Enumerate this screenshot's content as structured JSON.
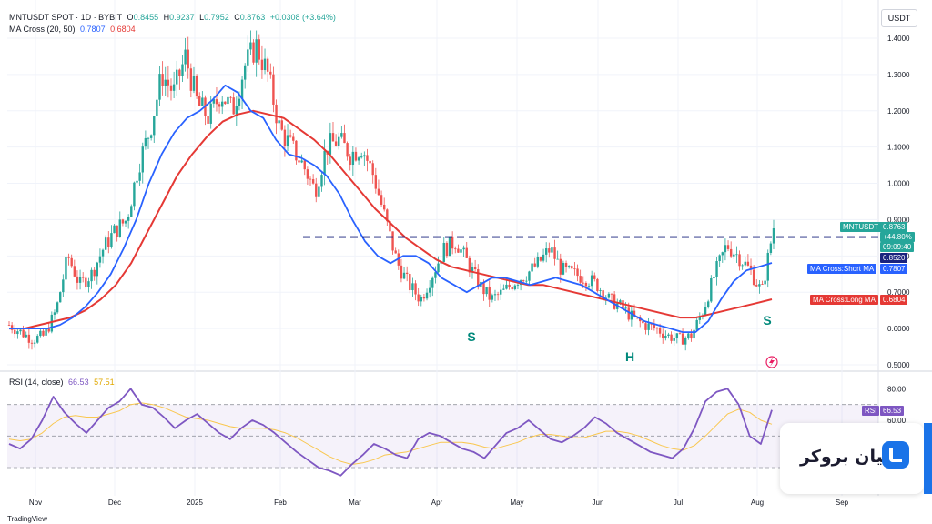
{
  "header": {
    "line1_prefix": "",
    "symbol_line": "MNTUSDT SPOT · 1D · BYBIT",
    "open_label": "O",
    "open": "0.8455",
    "high_label": "H",
    "high": "0.9237",
    "low_label": "L",
    "low": "0.7952",
    "close_label": "C",
    "close": "0.8763",
    "change": "+0.0308 (+3.64%)",
    "ma_label": "MA Cross (20, 50)",
    "ma_short": "0.7807",
    "ma_long": "0.6804",
    "currency_button": "USDT",
    "rsi_label": "RSI (14, close)",
    "rsi_value": "66.53",
    "rsi_ma": "57.51"
  },
  "price_tags": {
    "symbol": "MNTUSDT",
    "price": "0.8763",
    "pct": "+44.80%",
    "countdown": "09:09:40",
    "level": "0.8520",
    "short_ma_label": "MA Cross:Short MA",
    "short_ma": "0.7807",
    "long_ma_label": "MA Cross:Long MA",
    "long_ma": "0.6804",
    "rsi_tag_label": "RSI",
    "rsi_tag_value": "66.53"
  },
  "annotations": {
    "s_left": "S",
    "head": "H",
    "s_right": "S"
  },
  "logo": {
    "text": "لیان بروکر"
  },
  "footer": {
    "tradingview": "TradingView"
  },
  "colors": {
    "up": "#26a69a",
    "down": "#ef5350",
    "short_ma": "#2962ff",
    "long_ma": "#e53935",
    "rsi": "#7e57c2",
    "rsi_ma": "#f9c74f",
    "neckline": "#1a237e"
  },
  "chart_data": {
    "type": "line",
    "title": "MNTUSDT SPOT · 1D · BYBIT",
    "x_ticks": [
      "Nov",
      "Dec",
      "2025",
      "Feb",
      "Mar",
      "Apr",
      "May",
      "Jun",
      "Jul",
      "Aug",
      "Sep"
    ],
    "y_ticks": [
      "1.4000",
      "1.3000",
      "1.2000",
      "1.1000",
      "1.0000",
      "0.9000",
      "0.8000",
      "0.7000",
      "0.6000",
      "0.5000"
    ],
    "ylim": [
      0.49,
      1.43
    ],
    "rsi_ticks": [
      "80.00",
      "60.00"
    ],
    "rsi_ylim": [
      15,
      90
    ],
    "rsi_band": [
      30,
      70
    ],
    "neckline": 0.852,
    "series": [
      {
        "name": "MNTUSDT",
        "values": [
          0.61,
          0.59,
          0.57,
          0.58,
          0.65,
          0.8,
          0.72,
          0.75,
          0.82,
          0.87,
          0.9,
          1.05,
          1.15,
          1.3,
          1.25,
          1.35,
          1.22,
          1.18,
          1.25,
          1.2,
          1.32,
          1.38,
          1.3,
          1.15,
          1.1,
          1.05,
          0.98,
          1.1,
          1.12,
          1.08,
          1.1,
          1.02,
          0.9,
          0.78,
          0.72,
          0.68,
          0.75,
          0.82,
          0.84,
          0.78,
          0.72,
          0.68,
          0.7,
          0.73,
          0.75,
          0.78,
          0.82,
          0.76,
          0.75,
          0.74,
          0.72,
          0.68,
          0.66,
          0.63,
          0.61,
          0.6,
          0.58,
          0.57,
          0.58,
          0.65,
          0.75,
          0.83,
          0.8,
          0.76,
          0.7,
          0.88
        ]
      },
      {
        "name": "MA Cross:Short MA",
        "values": [
          0.6,
          0.6,
          0.6,
          0.6,
          0.61,
          0.63,
          0.66,
          0.7,
          0.75,
          0.82,
          0.9,
          1.0,
          1.08,
          1.14,
          1.18,
          1.2,
          1.23,
          1.27,
          1.25,
          1.2,
          1.18,
          1.12,
          1.08,
          1.07,
          1.05,
          1.02,
          0.97,
          0.9,
          0.84,
          0.8,
          0.78,
          0.8,
          0.8,
          0.78,
          0.74,
          0.72,
          0.7,
          0.72,
          0.74,
          0.74,
          0.73,
          0.72,
          0.73,
          0.74,
          0.73,
          0.72,
          0.7,
          0.68,
          0.66,
          0.64,
          0.62,
          0.61,
          0.6,
          0.59,
          0.59,
          0.62,
          0.68,
          0.73,
          0.76,
          0.77,
          0.7807
        ]
      },
      {
        "name": "MA Cross:Long MA",
        "values": [
          0.6,
          0.6,
          0.61,
          0.62,
          0.63,
          0.65,
          0.68,
          0.72,
          0.78,
          0.86,
          0.94,
          1.02,
          1.08,
          1.13,
          1.17,
          1.19,
          1.2,
          1.19,
          1.18,
          1.15,
          1.12,
          1.08,
          1.03,
          0.98,
          0.93,
          0.89,
          0.85,
          0.82,
          0.79,
          0.77,
          0.76,
          0.75,
          0.74,
          0.73,
          0.72,
          0.72,
          0.71,
          0.7,
          0.69,
          0.68,
          0.67,
          0.66,
          0.65,
          0.64,
          0.63,
          0.63,
          0.64,
          0.65,
          0.66,
          0.67,
          0.6804
        ]
      },
      {
        "name": "RSI",
        "values": [
          45,
          42,
          48,
          60,
          75,
          65,
          58,
          52,
          60,
          68,
          72,
          80,
          70,
          68,
          62,
          55,
          60,
          64,
          58,
          52,
          48,
          55,
          60,
          57,
          52,
          46,
          40,
          35,
          30,
          28,
          25,
          32,
          38,
          45,
          42,
          38,
          36,
          48,
          52,
          50,
          46,
          42,
          40,
          36,
          44,
          52,
          55,
          60,
          54,
          48,
          46,
          50,
          55,
          62,
          58,
          52,
          48,
          44,
          40,
          38,
          36,
          42,
          55,
          72,
          78,
          80,
          70,
          50,
          45,
          66.53
        ]
      },
      {
        "name": "RSI MA",
        "values": [
          48,
          47,
          48,
          52,
          58,
          62,
          63,
          62,
          62,
          64,
          66,
          70,
          71,
          70,
          68,
          65,
          62,
          61,
          60,
          58,
          56,
          55,
          55,
          55,
          54,
          52,
          49,
          45,
          41,
          37,
          34,
          32,
          33,
          35,
          38,
          39,
          40,
          42,
          44,
          46,
          46,
          46,
          45,
          43,
          42,
          44,
          46,
          49,
          51,
          51,
          50,
          49,
          49,
          51,
          53,
          53,
          52,
          50,
          47,
          44,
          42,
          41,
          44,
          50,
          57,
          64,
          67,
          65,
          60,
          57.51
        ]
      }
    ]
  }
}
